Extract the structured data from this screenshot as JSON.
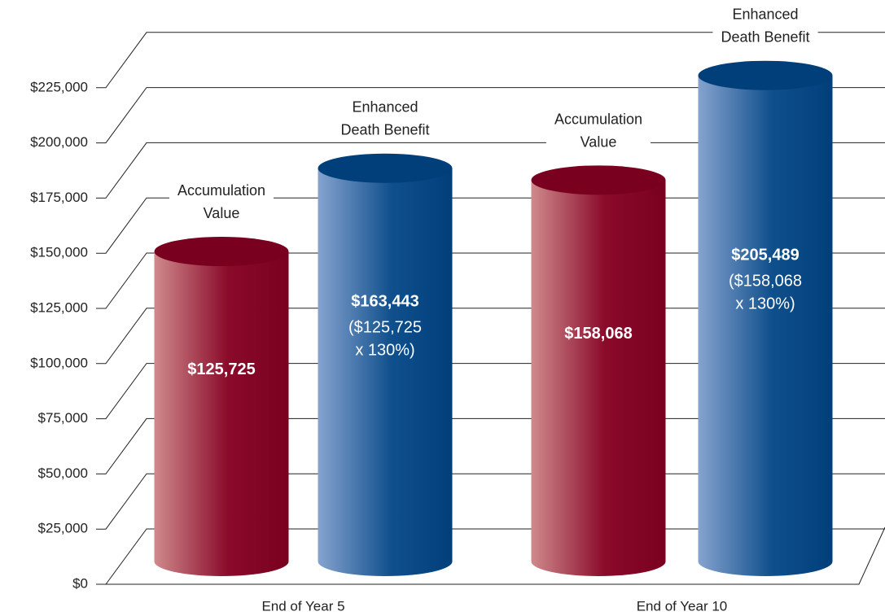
{
  "chart_data": {
    "type": "bar",
    "style": "3d-cylinder",
    "categories": [
      "End of Year 5",
      "End of Year 10"
    ],
    "series": [
      {
        "name": "Accumulation Value",
        "color": "#7a0020",
        "values": [
          125725,
          158068
        ],
        "value_labels": [
          "$125,725",
          "$158,068"
        ]
      },
      {
        "name": "Enhanced Death Benefit",
        "color": "#003f7a",
        "values": [
          163443,
          205489
        ],
        "value_labels": [
          "$163,443",
          "$205,489"
        ],
        "notes": [
          [
            "($125,725",
            "x 130%)"
          ],
          [
            "($158,068",
            "x 130%)"
          ]
        ]
      }
    ],
    "ylim": [
      0,
      225000
    ],
    "yticks": [
      {
        "value": 0,
        "label": "$0"
      },
      {
        "value": 25000,
        "label": "$25,000"
      },
      {
        "value": 50000,
        "label": "$50,000"
      },
      {
        "value": 75000,
        "label": "$75,000"
      },
      {
        "value": 100000,
        "label": "$100,000"
      },
      {
        "value": 125000,
        "label": "$125,000"
      },
      {
        "value": 150000,
        "label": "$150,000"
      },
      {
        "value": 175000,
        "label": "$175,000"
      },
      {
        "value": 200000,
        "label": "$200,000"
      },
      {
        "value": 225000,
        "label": "$225,000"
      }
    ],
    "grid": true
  }
}
